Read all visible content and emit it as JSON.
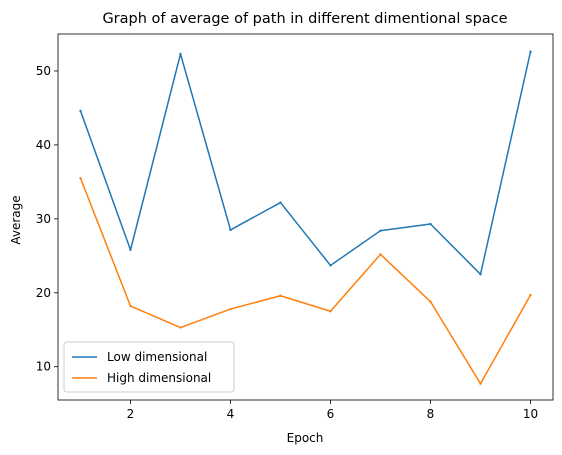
{
  "chart_data": {
    "type": "line",
    "title": "Graph of average of path in different dimentional space",
    "xlabel": "Epoch",
    "ylabel": "Average",
    "x": [
      1,
      2,
      3,
      4,
      5,
      6,
      7,
      8,
      9,
      10
    ],
    "xlim": [
      0.55,
      10.45
    ],
    "ylim": [
      5.5,
      55.0
    ],
    "xticks": [
      2,
      4,
      6,
      8,
      10
    ],
    "yticks": [
      10,
      20,
      30,
      40,
      50
    ],
    "grid": false,
    "legend_position": "lower-left",
    "series": [
      {
        "name": "Low dimensional",
        "color": "#1f77b4",
        "values": [
          44.6,
          25.8,
          52.3,
          28.5,
          32.2,
          23.7,
          28.4,
          29.3,
          22.5,
          52.6
        ]
      },
      {
        "name": "High dimensional",
        "color": "#ff7f0e",
        "values": [
          35.5,
          18.2,
          15.3,
          17.8,
          19.6,
          17.5,
          25.2,
          18.8,
          7.7,
          19.7
        ]
      }
    ]
  }
}
